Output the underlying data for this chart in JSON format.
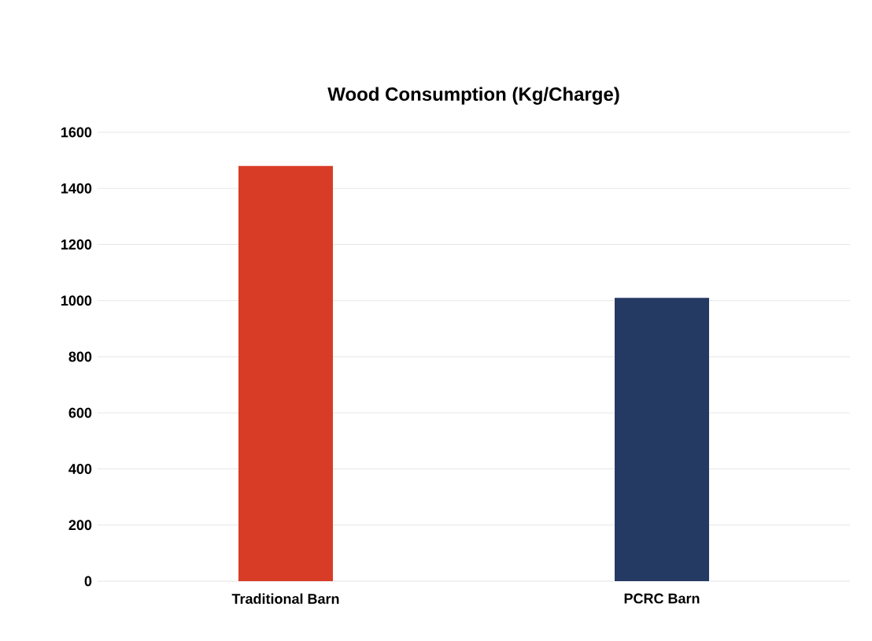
{
  "chart_data": {
    "type": "bar",
    "title": "Wood Consumption (Kg/Charge)",
    "categories": [
      "Traditional Barn",
      "PCRC Barn"
    ],
    "values": [
      1480,
      1010
    ],
    "colors": [
      "#d93c26",
      "#253a63"
    ],
    "ylim": [
      0,
      1600
    ],
    "yticks": [
      0,
      200,
      400,
      600,
      800,
      1000,
      1200,
      1400,
      1600
    ],
    "grid": "y"
  }
}
